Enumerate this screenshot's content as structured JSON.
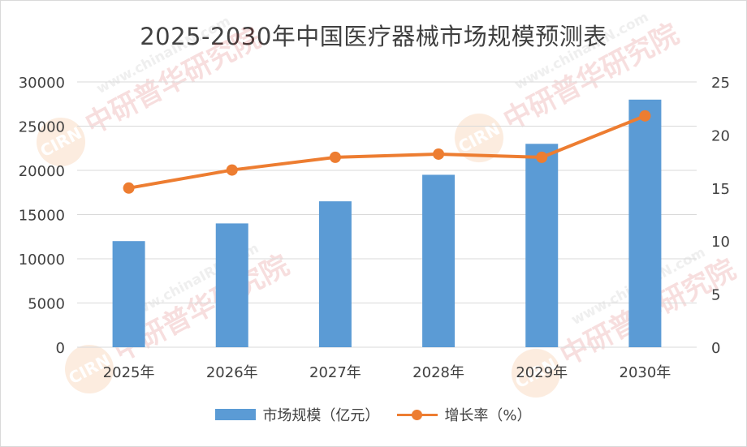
{
  "chart_data": {
    "type": "bar",
    "title": "2025-2030年中国医疗器械市场规模预测表",
    "categories": [
      "2025年",
      "2026年",
      "2027年",
      "2028年",
      "2029年",
      "2030年"
    ],
    "series": [
      {
        "name": "市场规模（亿元）",
        "type": "bar",
        "axis": "left",
        "color": "#5b9bd5",
        "values": [
          12000,
          14000,
          16500,
          19500,
          23000,
          28000
        ]
      },
      {
        "name": "增长率（%）",
        "type": "line",
        "axis": "right",
        "color": "#ed7d31",
        "values": [
          15.0,
          16.7,
          17.9,
          18.2,
          17.9,
          21.8
        ]
      }
    ],
    "y_left": {
      "ylim": [
        0,
        30000
      ],
      "ticks": [
        "0",
        "5000",
        "10000",
        "15000",
        "20000",
        "25000",
        "30000"
      ]
    },
    "y_right": {
      "ylim": [
        0,
        25
      ],
      "ticks": [
        "0",
        "5",
        "10",
        "15",
        "20",
        "25"
      ]
    },
    "grid": true,
    "legend_position": "bottom"
  },
  "watermark": {
    "brand_cn": "中研普华研究院",
    "brand_url": "www.chinaIRN.com",
    "logo_text": "CIRN"
  }
}
